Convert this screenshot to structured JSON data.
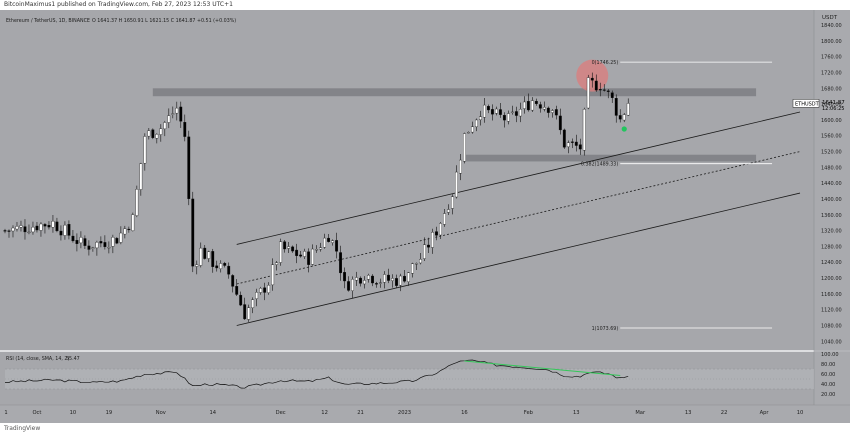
{
  "header": {
    "publisher": "BitcoinMaximus1 published on TradingView.com, Feb 27, 2023 12:53 UTC+1"
  },
  "footer": {
    "brand": "TradingView"
  },
  "colors": {
    "background": "#a6a7ab",
    "candle_up": "#ffffff",
    "candle_down": "#000000",
    "zone": "#7d7e82",
    "circle": "#d98080",
    "marker": "#22c55e",
    "rsi_trend": "#34c759"
  },
  "chart_data": [
    {
      "type": "candlestick",
      "title": "Ethereum / TetherUS, 1D, BINANCE",
      "ohlc_label": "O 1641.37  H 1650.91  L 1621.15  C 1641.87  +0.51 (+0.03%)",
      "price_badge": {
        "symbol": "ETHUSDT",
        "price": "1641.87",
        "countdown": "12:06:25",
        "value": 1641.87
      },
      "y_axis": {
        "unit": "USDT",
        "ticks": [
          "1840.00",
          "1800.00",
          "1760.00",
          "1720.00",
          "1680.00",
          "1640.00",
          "1600.00",
          "1560.00",
          "1520.00",
          "1480.00",
          "1440.00",
          "1400.00",
          "1360.00",
          "1320.00",
          "1280.00",
          "1240.00",
          "1200.00",
          "1160.00",
          "1120.00",
          "1080.00",
          "1040.00"
        ],
        "tick_values": [
          1840,
          1800,
          1760,
          1720,
          1680,
          1640,
          1600,
          1560,
          1520,
          1480,
          1440,
          1400,
          1360,
          1320,
          1280,
          1240,
          1200,
          1160,
          1120,
          1080,
          1040
        ],
        "range": [
          1023,
          1868
        ]
      },
      "x_axis": {
        "ticks": [
          "Oct",
          "10",
          "19",
          "Nov",
          "14",
          "Dec",
          "12",
          "21",
          "2023",
          "16",
          "Feb",
          "13",
          "Mar",
          "13",
          "22",
          "Apr",
          "10"
        ],
        "tick_dates": [
          "2022-10-01",
          "2022-10-10",
          "2022-10-19",
          "2022-11-01",
          "2022-11-14",
          "2022-12-01",
          "2022-12-12",
          "2022-12-21",
          "2023-01-01",
          "2023-01-16",
          "2023-02-01",
          "2023-02-13",
          "2023-03-01",
          "2023-03-13",
          "2023-03-22",
          "2023-04-01",
          "2023-04-10"
        ],
        "first_tick_label": "1",
        "domain": [
          "2022-09-23",
          "2023-04-13"
        ]
      },
      "anchors": [
        [
          "2022-09-23",
          1320
        ],
        [
          "2022-10-05",
          1340
        ],
        [
          "2022-10-13",
          1280
        ],
        [
          "2022-10-21",
          1300
        ],
        [
          "2022-10-25",
          1350
        ],
        [
          "2022-10-28",
          1560
        ],
        [
          "2022-11-01",
          1580
        ],
        [
          "2022-11-05",
          1630
        ],
        [
          "2022-11-07",
          1560
        ],
        [
          "2022-11-09",
          1230
        ],
        [
          "2022-11-11",
          1270
        ],
        [
          "2022-11-14",
          1240
        ],
        [
          "2022-11-18",
          1210
        ],
        [
          "2022-11-22",
          1110
        ],
        [
          "2022-11-28",
          1190
        ],
        [
          "2022-12-01",
          1275
        ],
        [
          "2022-12-08",
          1250
        ],
        [
          "2022-12-13",
          1310
        ],
        [
          "2022-12-15",
          1270
        ],
        [
          "2022-12-17",
          1180
        ],
        [
          "2022-12-22",
          1210
        ],
        [
          "2022-12-26",
          1195
        ],
        [
          "2022-12-31",
          1195
        ],
        [
          "2023-01-05",
          1250
        ],
        [
          "2023-01-09",
          1320
        ],
        [
          "2023-01-13",
          1415
        ],
        [
          "2023-01-16",
          1560
        ],
        [
          "2023-01-20",
          1625
        ],
        [
          "2023-01-27",
          1600
        ],
        [
          "2023-02-02",
          1650
        ],
        [
          "2023-02-07",
          1630
        ],
        [
          "2023-02-10",
          1540
        ],
        [
          "2023-02-14",
          1530
        ],
        [
          "2023-02-16",
          1690
        ],
        [
          "2023-02-19",
          1690
        ],
        [
          "2023-02-22",
          1650
        ],
        [
          "2023-02-24",
          1600
        ],
        [
          "2023-02-26",
          1641.87
        ]
      ],
      "resistance_zone": {
        "from": "2022-10-30",
        "to": "2023-03-30",
        "low": 1660,
        "high": 1680
      },
      "support_zone": {
        "from": "2023-01-16",
        "to": "2023-03-30",
        "low": 1495,
        "high": 1512
      },
      "fibonacci": [
        {
          "label": "0(1746.25)",
          "value": 1746.25
        },
        {
          "label": "0.382(1489.33)",
          "value": 1489.33
        },
        {
          "label": "1(1073.69)",
          "value": 1073.69
        }
      ],
      "channel": {
        "upper": [
          [
            "2022-11-20",
            1285
          ],
          [
            "2023-04-10",
            1620
          ]
        ],
        "middle": [
          [
            "2022-11-20",
            1185
          ],
          [
            "2023-04-10",
            1520
          ]
        ],
        "lower": [
          [
            "2022-11-20",
            1080
          ],
          [
            "2023-04-10",
            1415
          ]
        ]
      },
      "annotations": [
        {
          "type": "circle",
          "date": "2023-02-17",
          "value": 1712
        },
        {
          "type": "marker",
          "date": "2023-02-25",
          "value": 1577
        }
      ]
    },
    {
      "type": "line",
      "title": "RSI (14, close, SMA, 14, 2)",
      "value": "55.47",
      "y_axis": {
        "ticks": [
          "100.00",
          "80.00",
          "60.00",
          "40.00",
          "20.00"
        ],
        "tick_values": [
          100,
          80,
          60,
          40,
          20
        ],
        "range": [
          0,
          100
        ]
      },
      "band": [
        30,
        70
      ],
      "midline": 50,
      "anchors": [
        [
          "2022-09-23",
          44
        ],
        [
          "2022-10-05",
          48
        ],
        [
          "2022-10-15",
          43
        ],
        [
          "2022-10-22",
          46
        ],
        [
          "2022-10-28",
          60
        ],
        [
          "2022-11-02",
          62
        ],
        [
          "2022-11-05",
          64
        ],
        [
          "2022-11-09",
          36
        ],
        [
          "2022-11-13",
          40
        ],
        [
          "2022-11-18",
          37
        ],
        [
          "2022-11-22",
          33
        ],
        [
          "2022-12-01",
          47
        ],
        [
          "2022-12-08",
          45
        ],
        [
          "2022-12-13",
          52
        ],
        [
          "2022-12-17",
          39
        ],
        [
          "2022-12-27",
          42
        ],
        [
          "2023-01-03",
          46
        ],
        [
          "2023-01-09",
          62
        ],
        [
          "2023-01-14",
          84
        ],
        [
          "2023-01-18",
          87
        ],
        [
          "2023-01-24",
          78
        ],
        [
          "2023-02-01",
          73
        ],
        [
          "2023-02-06",
          69
        ],
        [
          "2023-02-10",
          57
        ],
        [
          "2023-02-14",
          55
        ],
        [
          "2023-02-16",
          64
        ],
        [
          "2023-02-21",
          61
        ],
        [
          "2023-02-24",
          51
        ],
        [
          "2023-02-26",
          55.47
        ]
      ],
      "trendline": [
        [
          "2023-01-16",
          86
        ],
        [
          "2023-02-24",
          57
        ]
      ]
    }
  ]
}
